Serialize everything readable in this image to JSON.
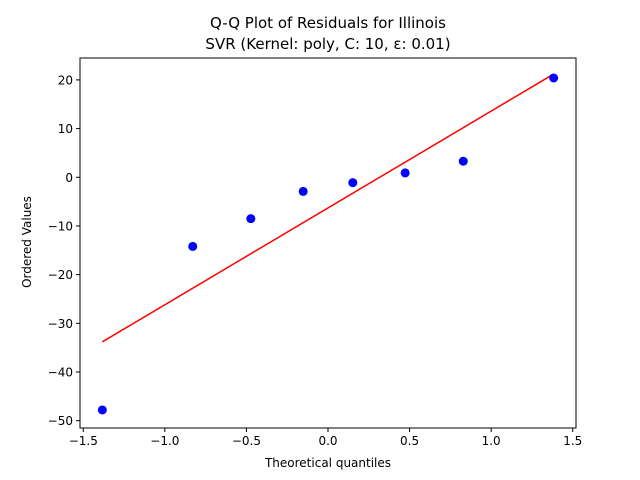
{
  "chart_data": {
    "type": "scatter",
    "title_line1": "Q-Q Plot of Residuals for Illinois",
    "title_line2": "SVR (Kernel: poly, C: 10, ε: 0.01)",
    "xlabel": "Theoretical quantiles",
    "ylabel": "Ordered Values",
    "xlim": [
      -1.52,
      1.52
    ],
    "ylim": [
      -51.5,
      24.5
    ],
    "xticks": [
      -1.5,
      -1.0,
      -0.5,
      0.0,
      0.5,
      1.0,
      1.5
    ],
    "xtick_labels": [
      "−1.5",
      "−1.0",
      "−0.5",
      "0.0",
      "0.5",
      "1.0",
      "1.5"
    ],
    "yticks": [
      -50,
      -40,
      -30,
      -20,
      -10,
      0,
      10,
      20
    ],
    "ytick_labels": [
      "−50",
      "−40",
      "−30",
      "−20",
      "−10",
      "0",
      "10",
      "20"
    ],
    "grid": false,
    "points": {
      "x": [
        -1.383,
        -0.829,
        -0.473,
        -0.152,
        0.152,
        0.473,
        0.829,
        1.383
      ],
      "y": [
        -47.8,
        -14.2,
        -8.5,
        -2.9,
        -1.1,
        0.9,
        3.3,
        20.4
      ],
      "color": "#0000ff"
    },
    "fit_line": {
      "x": [
        -1.383,
        1.383
      ],
      "y": [
        -33.8,
        21.2
      ],
      "color": "#ff0000"
    }
  }
}
